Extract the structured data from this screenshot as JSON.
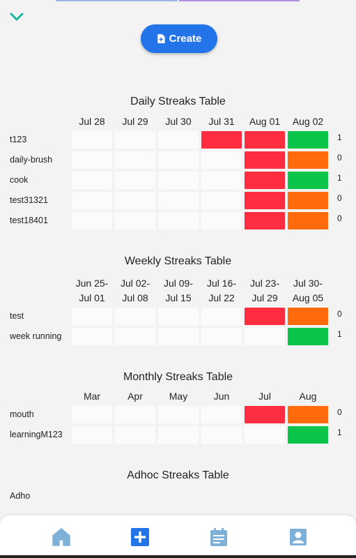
{
  "create_button": {
    "label": "Create"
  },
  "daily": {
    "title": "Daily Streaks Table",
    "columns": [
      "Jul 28",
      "Jul 29",
      "Jul 30",
      "Jul 31",
      "Aug 01",
      "Aug 02"
    ],
    "rows": [
      {
        "label": "t123",
        "cells": [
          "empty",
          "empty",
          "empty",
          "red",
          "red",
          "green"
        ],
        "count": "1"
      },
      {
        "label": "daily-brush",
        "cells": [
          "empty",
          "empty",
          "empty",
          "empty",
          "red",
          "orange"
        ],
        "count": "0"
      },
      {
        "label": "cook",
        "cells": [
          "empty",
          "empty",
          "empty",
          "empty",
          "red",
          "green"
        ],
        "count": "1"
      },
      {
        "label": "test31321",
        "cells": [
          "empty",
          "empty",
          "empty",
          "empty",
          "red",
          "orange"
        ],
        "count": "0"
      },
      {
        "label": "test18401",
        "cells": [
          "empty",
          "empty",
          "empty",
          "empty",
          "red",
          "orange"
        ],
        "count": "0"
      }
    ]
  },
  "weekly": {
    "title": "Weekly Streaks Table",
    "columns": [
      [
        "Jun 25-",
        "Jul 01"
      ],
      [
        "Jul 02-",
        "Jul 08"
      ],
      [
        "Jul 09-",
        "Jul 15"
      ],
      [
        "Jul 16-",
        "Jul 22"
      ],
      [
        "Jul 23-",
        "Jul 29"
      ],
      [
        "Jul 30-",
        "Aug 05"
      ]
    ],
    "rows": [
      {
        "label": "test",
        "cells": [
          "empty",
          "empty",
          "empty",
          "empty",
          "red",
          "orange"
        ],
        "count": "0"
      },
      {
        "label": "week running",
        "cells": [
          "empty",
          "empty",
          "empty",
          "empty",
          "empty",
          "green"
        ],
        "count": "1"
      }
    ]
  },
  "monthly": {
    "title": "Monthly Streaks Table",
    "columns": [
      "Mar",
      "Apr",
      "May",
      "Jun",
      "Jul",
      "Aug"
    ],
    "rows": [
      {
        "label": "mouth",
        "cells": [
          "empty",
          "empty",
          "empty",
          "empty",
          "red",
          "orange"
        ],
        "count": "0"
      },
      {
        "label": "learningM123",
        "cells": [
          "empty",
          "empty",
          "empty",
          "empty",
          "empty",
          "green"
        ],
        "count": "1"
      }
    ]
  },
  "adhoc": {
    "title": "Adhoc Streaks Table",
    "rows": [
      {
        "label": "Adho"
      }
    ]
  },
  "colors": {
    "accent": "#2274e8",
    "red": "#ff2d3f",
    "orange": "#ff6a0d",
    "green": "#0ac54a",
    "nav_icon": "#7fb0d8",
    "nav_active": "#2274e8"
  },
  "nav": [
    {
      "icon": "home-icon",
      "active": false
    },
    {
      "icon": "add-square-icon",
      "active": true
    },
    {
      "icon": "calendar-list-icon",
      "active": false
    },
    {
      "icon": "profile-icon",
      "active": false
    }
  ]
}
